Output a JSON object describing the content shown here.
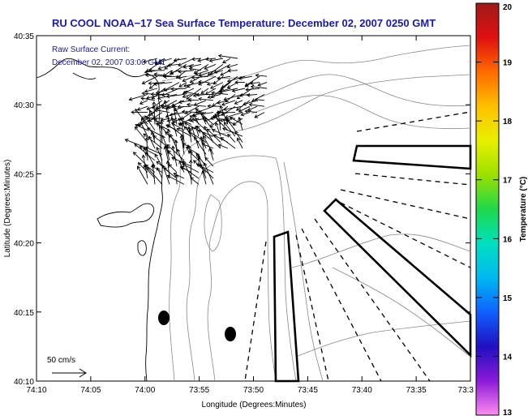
{
  "title": "RU COOL  NOAA−17  Sea Surface Temperature:  December 02, 2007 0250 GMT",
  "legend": {
    "line1": "Raw Surface Current:",
    "line2": "December 02, 2007 03:00 GMT",
    "scale_label": "50 cm/s"
  },
  "axes": {
    "xlabel": "Longitude (Degrees:Minutes)",
    "ylabel": "Latitude (Degrees:Minutes)",
    "x_ticks": [
      "74:10",
      "74:05",
      "74:00",
      "73:55",
      "73:50",
      "73:45",
      "73:40",
      "73:35",
      "73:3"
    ],
    "y_ticks": [
      "40:35",
      "40:30",
      "40:25",
      "40:20",
      "40:15",
      "40:10"
    ]
  },
  "colorbar": {
    "label": "Temperature (°C)",
    "ticks": [
      "20",
      "19",
      "18",
      "17",
      "16",
      "15",
      "14",
      "13"
    ],
    "colors": [
      "#9e1a1a",
      "#e01010",
      "#ff6a00",
      "#ffc000",
      "#e8f000",
      "#9de000",
      "#1ed84a",
      "#00e0c0",
      "#00b8f0",
      "#1060ff",
      "#2010c0",
      "#8a1ad8",
      "#ff8cf0"
    ]
  }
}
